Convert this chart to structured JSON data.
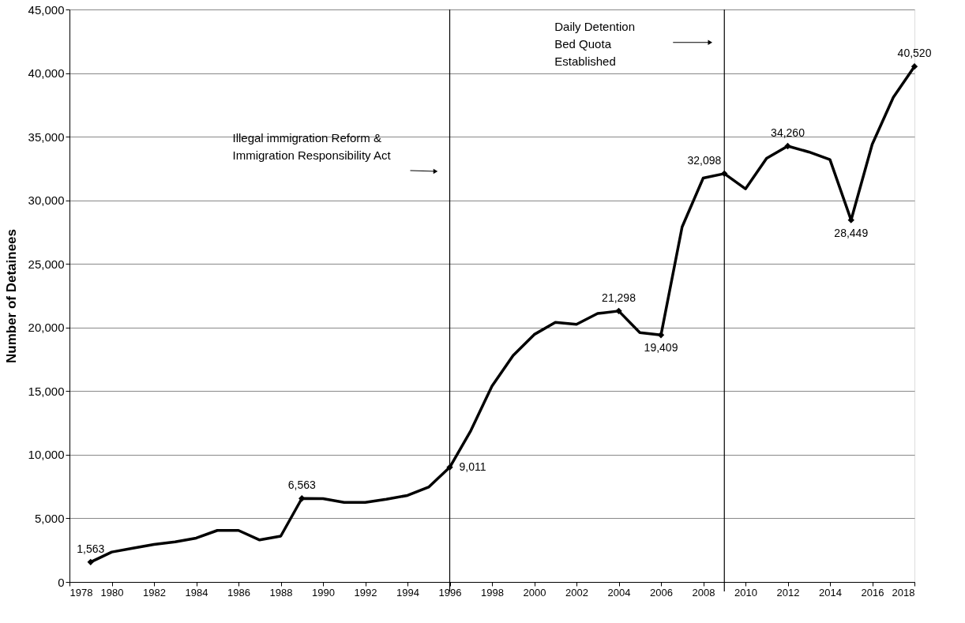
{
  "chart_data": {
    "type": "line",
    "ylabel": "Number of Detainees",
    "x": [
      1979,
      1980,
      1981,
      1982,
      1983,
      1984,
      1985,
      1986,
      1987,
      1988,
      1989,
      1990,
      1991,
      1992,
      1993,
      1994,
      1995,
      1996,
      1997,
      1998,
      1999,
      2000,
      2001,
      2002,
      2003,
      2004,
      2005,
      2006,
      2007,
      2008,
      2009,
      2010,
      2011,
      2012,
      2013,
      2014,
      2015,
      2016,
      2017,
      2018
    ],
    "series": [
      {
        "color": "#000000",
        "values": [
          1563,
          2350,
          2650,
          2950,
          3150,
          3450,
          4050,
          4050,
          3300,
          3600,
          6563,
          6550,
          6250,
          6250,
          6500,
          6800,
          7450,
          9011,
          11900,
          15400,
          17800,
          19450,
          20400,
          20250,
          21100,
          21298,
          19600,
          19409,
          27900,
          31750,
          32098,
          30900,
          33300,
          34260,
          33800,
          33200,
          28449,
          34400,
          38100,
          40520
        ],
        "value_labels": [
          "1,563",
          null,
          null,
          null,
          null,
          null,
          null,
          null,
          null,
          null,
          "6,563",
          null,
          null,
          null,
          null,
          null,
          null,
          "9,011",
          null,
          null,
          null,
          null,
          null,
          null,
          null,
          "21,298",
          null,
          "19,409",
          null,
          null,
          "32,098",
          null,
          null,
          "34,260",
          null,
          null,
          "28,449",
          null,
          null,
          "40,520"
        ]
      }
    ],
    "xlim": [
      1978,
      2018
    ],
    "xticks": [
      1978,
      1980,
      1982,
      1984,
      1986,
      1988,
      1990,
      1992,
      1994,
      1996,
      1998,
      2000,
      2002,
      2004,
      2006,
      2008,
      2010,
      2012,
      2014,
      2016,
      2018
    ],
    "ylim": [
      0,
      45000
    ],
    "yticks": [
      0,
      {
        "value": 5000,
        "label": "5,000"
      },
      {
        "value": 10000,
        "label": "10,000"
      },
      {
        "value": 15000,
        "label": "15,000"
      },
      {
        "value": 20000,
        "label": "20,000"
      },
      {
        "value": 25000,
        "label": "25,000"
      },
      {
        "value": 30000,
        "label": "30,000"
      },
      {
        "value": 35000,
        "label": "35,000"
      },
      {
        "value": 40000,
        "label": "40,000"
      },
      {
        "value": 45000,
        "label": "45,000"
      }
    ],
    "grid": "y",
    "line_style": "solid",
    "annotations": [
      "Illegal immigration Reform &\nImmigration Responsibility Act",
      "Daily Detention\nBed Quota\nEstablished"
    ],
    "ref_lines": [
      {
        "axis": "x",
        "value": 1996,
        "color": "#000000"
      },
      {
        "axis": "x",
        "value": 2009,
        "color": "#000000"
      }
    ]
  }
}
